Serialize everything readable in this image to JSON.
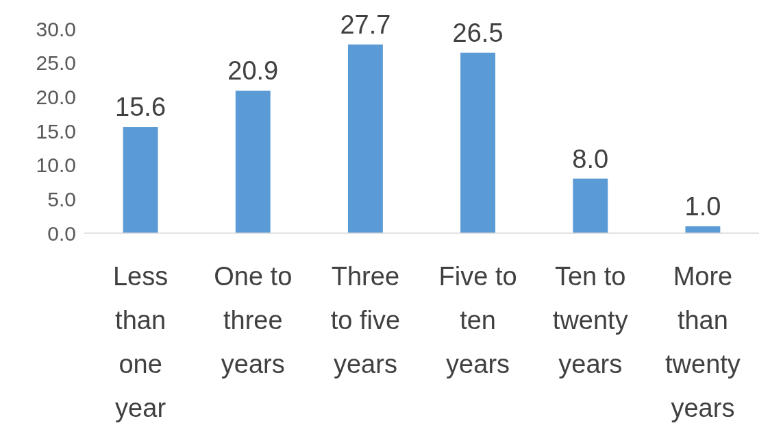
{
  "chart_data": {
    "type": "bar",
    "categories": [
      "Less than one year",
      "One to three years",
      "Three to five years",
      "Five to ten years",
      "Ten to twenty years",
      "More than twenty years"
    ],
    "values": [
      15.6,
      20.9,
      27.7,
      26.5,
      8.0,
      1.0
    ],
    "value_labels": [
      "15.6",
      "20.9",
      "27.7",
      "26.5",
      "8.0",
      "1.0"
    ],
    "color": "#5b9bd5",
    "ylim": [
      0,
      30
    ],
    "yticks": [
      {
        "value": 0,
        "label": "0.0"
      },
      {
        "value": 5,
        "label": "5.0"
      },
      {
        "value": 10,
        "label": "10.0"
      },
      {
        "value": 15,
        "label": "15.0"
      },
      {
        "value": 20,
        "label": "20.0"
      },
      {
        "value": 25,
        "label": "25.0"
      },
      {
        "value": 30,
        "label": "30.0"
      }
    ],
    "grid": false
  }
}
